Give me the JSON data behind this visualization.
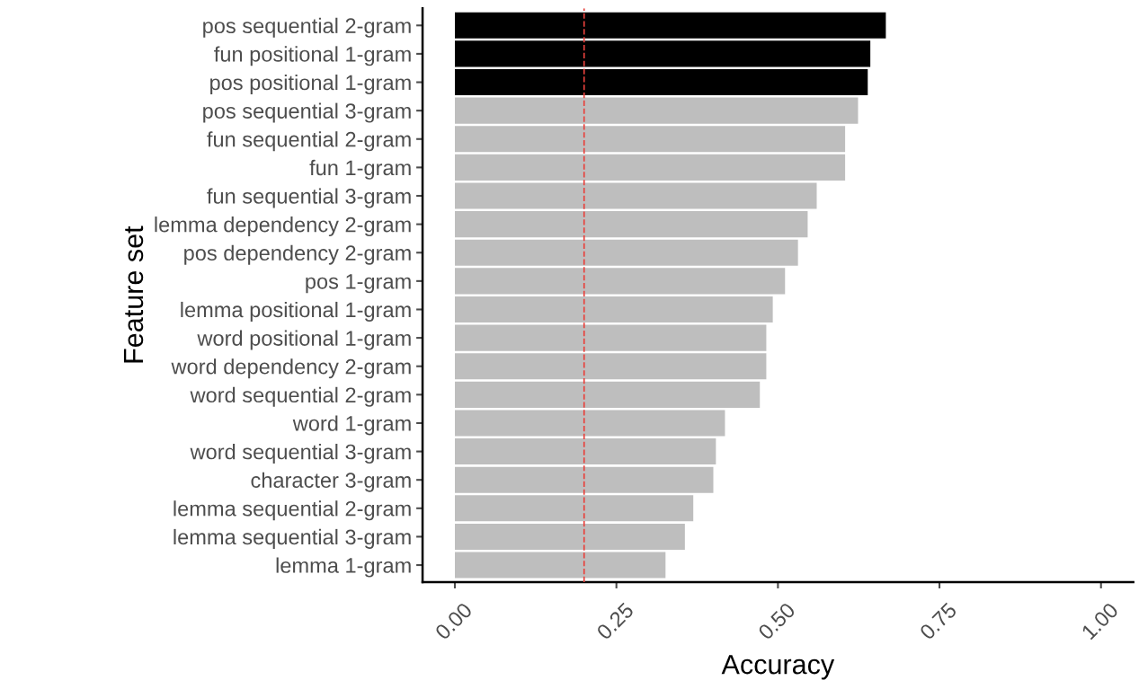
{
  "chart_data": {
    "type": "bar",
    "orientation": "horizontal",
    "xlabel": "Accuracy",
    "ylabel": "Feature set",
    "categories": [
      "pos sequential 2-gram",
      "fun positional 1-gram",
      "pos positional 1-gram",
      "pos sequential 3-gram",
      "fun sequential 2-gram",
      "fun 1-gram",
      "fun sequential 3-gram",
      "lemma dependency 2-gram",
      "pos dependency 2-gram",
      "pos 1-gram",
      "lemma positional 1-gram",
      "word positional 1-gram",
      "word dependency 2-gram",
      "word sequential 2-gram",
      "word 1-gram",
      "word sequential 3-gram",
      "character 3-gram",
      "lemma sequential 2-gram",
      "lemma sequential 3-gram",
      "lemma 1-gram"
    ],
    "values": [
      0.667,
      0.643,
      0.639,
      0.624,
      0.604,
      0.604,
      0.56,
      0.546,
      0.531,
      0.511,
      0.492,
      0.482,
      0.482,
      0.472,
      0.418,
      0.404,
      0.4,
      0.369,
      0.356,
      0.326
    ],
    "colors": [
      "#000000",
      "#000000",
      "#000000",
      "#bebebe",
      "#bebebe",
      "#bebebe",
      "#bebebe",
      "#bebebe",
      "#bebebe",
      "#bebebe",
      "#bebebe",
      "#bebebe",
      "#bebebe",
      "#bebebe",
      "#bebebe",
      "#bebebe",
      "#bebebe",
      "#bebebe",
      "#bebebe",
      "#bebebe"
    ],
    "xlim": [
      -0.05,
      1.05
    ],
    "xticks": [
      {
        "value": 0,
        "label": "0.00"
      },
      {
        "value": 0.25,
        "label": "0.25"
      },
      {
        "value": 0.5,
        "label": "0.50"
      },
      {
        "value": 0.75,
        "label": "0.75"
      },
      {
        "value": 1,
        "label": "1.00"
      }
    ],
    "ref_lines": [
      {
        "axis": "x",
        "value": 0.2,
        "label": null,
        "color": "#e8413c",
        "line_style": "dashed"
      }
    ],
    "grid": false,
    "legend": false
  }
}
